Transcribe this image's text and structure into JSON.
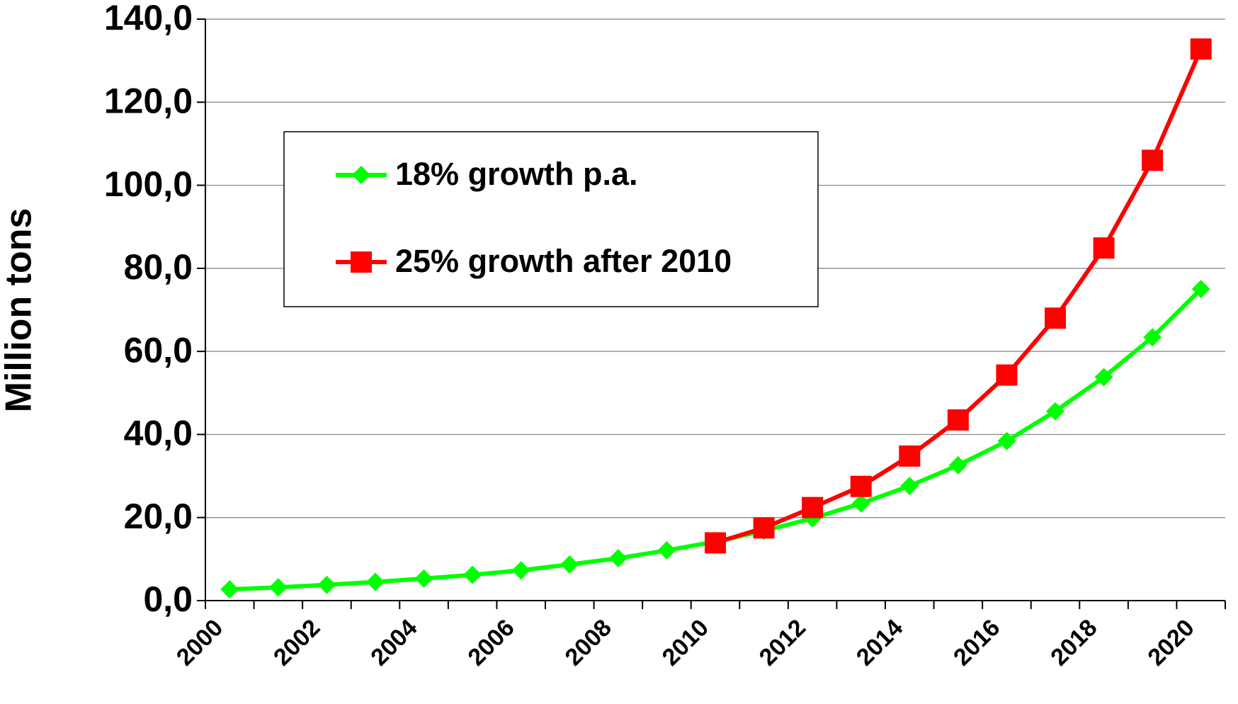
{
  "chart_data": {
    "type": "line",
    "y_label": "Million tons",
    "categories": [
      "2000",
      null,
      "2002",
      null,
      "2004",
      null,
      "2006",
      null,
      "2008",
      null,
      "2010",
      null,
      "2012",
      null,
      "2014",
      null,
      "2016",
      null,
      "2018",
      null,
      "2020"
    ],
    "series": [
      {
        "name": "18% growth p.a.",
        "color": "#00ff00",
        "marker": "diamond",
        "values": [
          2.7,
          3.2,
          3.8,
          4.5,
          5.3,
          6.2,
          7.3,
          8.7,
          10.2,
          12.1,
          14.2,
          16.8,
          19.8,
          23.4,
          27.6,
          32.6,
          38.4,
          45.6,
          53.8,
          63.4,
          75.0
        ]
      },
      {
        "name": "25% growth after 2010",
        "color": "#ff0000",
        "marker": "square",
        "values": [
          null,
          null,
          null,
          null,
          null,
          null,
          null,
          null,
          null,
          null,
          13.9,
          17.5,
          22.4,
          27.5,
          34.8,
          43.5,
          54.3,
          68.0,
          84.9,
          106.0,
          132.8
        ]
      }
    ],
    "ylim": [
      0,
      140
    ],
    "yticks": [
      {
        "value": 0,
        "label": "0,0"
      },
      {
        "value": 20,
        "label": "20,0"
      },
      {
        "value": 40,
        "label": "40,0"
      },
      {
        "value": 60,
        "label": "60,0"
      },
      {
        "value": 80,
        "label": "80,0"
      },
      {
        "value": 100,
        "label": "100,0"
      },
      {
        "value": 120,
        "label": "120,0"
      },
      {
        "value": 140,
        "label": "140,0"
      }
    ],
    "grid": true,
    "legend": "upper left"
  }
}
